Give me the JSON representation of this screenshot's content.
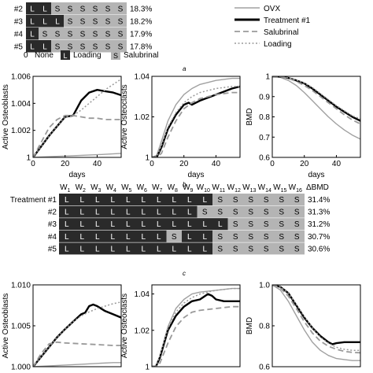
{
  "top_grid": {
    "rows": [
      {
        "label": "#2",
        "cells": [
          "L",
          "L",
          "S",
          "S",
          "S",
          "S",
          "S",
          "S"
        ],
        "pct": "18.3%"
      },
      {
        "label": "#3",
        "cells": [
          "L",
          "L",
          "L",
          "S",
          "S",
          "S",
          "S",
          "S"
        ],
        "pct": "18.2%"
      },
      {
        "label": "#4",
        "cells": [
          "L",
          "S",
          "S",
          "S",
          "S",
          "S",
          "S",
          "S"
        ],
        "pct": "17.9%"
      },
      {
        "label": "#5",
        "cells": [
          "L",
          "L",
          "S",
          "S",
          "S",
          "S",
          "S",
          "S"
        ],
        "pct": "17.8%"
      }
    ],
    "key": {
      "none_symbol": "0",
      "none": "None",
      "loading_symbol": "L",
      "loading": "Loading",
      "salubrinal_symbol": "S",
      "salubrinal": "Salubrinal"
    },
    "caption": "a"
  },
  "legend": {
    "items": [
      {
        "name": "OVX",
        "color": "#a0a0a0",
        "style": "solid"
      },
      {
        "name": "Treatment #1",
        "color": "#000000",
        "style": "solid-thick"
      },
      {
        "name": "Salubrinal",
        "color": "#999999",
        "style": "dashed"
      },
      {
        "name": "Loading",
        "color": "#999999",
        "style": "dotted"
      }
    ]
  },
  "row_b_caption": "b",
  "row_c_caption": "c",
  "mid_grid": {
    "week_prefix": "W",
    "weeks": [
      "1",
      "2",
      "3",
      "4",
      "5",
      "6",
      "7",
      "8",
      "9",
      "10",
      "11",
      "12",
      "13",
      "14",
      "15",
      "16"
    ],
    "delta_label": "ΔBMD",
    "rows": [
      {
        "label": "Treatment #1",
        "cells": [
          "L",
          "L",
          "L",
          "L",
          "L",
          "L",
          "L",
          "L",
          "L",
          "L",
          "S",
          "S",
          "S",
          "S",
          "S",
          "S"
        ],
        "pct": "31.4%"
      },
      {
        "label": "#2",
        "cells": [
          "L",
          "L",
          "L",
          "L",
          "L",
          "L",
          "L",
          "L",
          "L",
          "S",
          "S",
          "S",
          "S",
          "S",
          "S",
          "S"
        ],
        "pct": "31.3%"
      },
      {
        "label": "#3",
        "cells": [
          "L",
          "L",
          "L",
          "L",
          "L",
          "L",
          "L",
          "L",
          "L",
          "L",
          "L",
          "S",
          "S",
          "S",
          "S",
          "S"
        ],
        "pct": "31.2%"
      },
      {
        "label": "#4",
        "cells": [
          "L",
          "L",
          "L",
          "L",
          "L",
          "L",
          "L",
          "S",
          "L",
          "L",
          "S",
          "S",
          "S",
          "S",
          "S",
          "S"
        ],
        "pct": "30.7%"
      },
      {
        "label": "#5",
        "cells": [
          "L",
          "L",
          "L",
          "L",
          "L",
          "L",
          "L",
          "L",
          "L",
          "L",
          "S",
          "S",
          "S",
          "S",
          "S",
          "S"
        ],
        "pct": "30.6%"
      }
    ]
  },
  "colors": {
    "loading": "#2a2a2a",
    "salubrinal": "#b4b4b4"
  },
  "chart_data": [
    {
      "type": "line",
      "ylabel": "Active Osteoblasts",
      "xlabel": "days",
      "xlim": [
        0,
        55
      ],
      "ylim": [
        1.0,
        1.006
      ],
      "yticks": [
        "1",
        "1.002",
        "1.004",
        "1.006"
      ],
      "xticks": [
        "0",
        "20",
        "40"
      ],
      "series": [
        {
          "name": "OVX",
          "x": [
            0,
            10,
            20,
            30,
            40,
            55
          ],
          "y": [
            1.0,
            1.00005,
            1.0001,
            1.00015,
            1.0002,
            1.0003
          ]
        },
        {
          "name": "Treatment #1",
          "x": [
            0,
            5,
            10,
            15,
            20,
            25,
            30,
            35,
            40,
            45,
            50,
            55
          ],
          "y": [
            1.0,
            1.0008,
            1.0016,
            1.0023,
            1.003,
            1.0031,
            1.0042,
            1.0048,
            1.005,
            1.0049,
            1.0048,
            1.0046
          ]
        },
        {
          "name": "Salubrinal",
          "x": [
            0,
            5,
            10,
            15,
            20,
            25,
            30,
            35,
            40,
            45,
            50,
            55
          ],
          "y": [
            1.0,
            1.0011,
            1.0022,
            1.0028,
            1.0031,
            1.0031,
            1.003,
            1.0029,
            1.0029,
            1.0028,
            1.0028,
            1.0028
          ]
        },
        {
          "name": "Loading",
          "x": [
            0,
            5,
            10,
            15,
            20,
            25,
            30,
            35,
            40,
            45,
            50,
            55
          ],
          "y": [
            1.0,
            1.0008,
            1.0016,
            1.0023,
            1.003,
            1.0031,
            1.0035,
            1.004,
            1.0045,
            1.005,
            1.0054,
            1.0058
          ]
        }
      ]
    },
    {
      "type": "line",
      "ylabel": "Active Osteoclasts",
      "xlabel": "days",
      "xlim": [
        0,
        55
      ],
      "ylim": [
        1.0,
        1.04
      ],
      "yticks": [
        "1",
        "1.02",
        "1.04"
      ],
      "xticks": [
        "0",
        "20",
        "40"
      ],
      "series": [
        {
          "name": "OVX",
          "x": [
            0,
            3,
            6,
            10,
            15,
            20,
            25,
            30,
            40,
            50,
            55
          ],
          "y": [
            1.0,
            1.001,
            1.008,
            1.018,
            1.026,
            1.031,
            1.034,
            1.036,
            1.038,
            1.039,
            1.039
          ]
        },
        {
          "name": "Treatment #1",
          "x": [
            0,
            3,
            6,
            10,
            15,
            20,
            23,
            25,
            30,
            40,
            50,
            55
          ],
          "y": [
            1.0,
            1.0,
            1.005,
            1.014,
            1.021,
            1.026,
            1.027,
            1.026,
            1.028,
            1.031,
            1.034,
            1.035
          ]
        },
        {
          "name": "Salubrinal",
          "x": [
            0,
            3,
            6,
            10,
            15,
            20,
            25,
            30,
            40,
            50,
            55
          ],
          "y": [
            1.0,
            1.0,
            1.002,
            1.01,
            1.018,
            1.024,
            1.027,
            1.029,
            1.031,
            1.032,
            1.032
          ]
        },
        {
          "name": "Loading",
          "x": [
            0,
            3,
            6,
            10,
            15,
            20,
            25,
            30,
            40,
            50,
            55
          ],
          "y": [
            1.0,
            1.0,
            1.006,
            1.015,
            1.022,
            1.027,
            1.03,
            1.032,
            1.034,
            1.035,
            1.035
          ]
        }
      ]
    },
    {
      "type": "line",
      "ylabel": "BMD",
      "xlabel": "days",
      "xlim": [
        0,
        55
      ],
      "ylim": [
        0.6,
        1.0
      ],
      "yticks": [
        "0.6",
        "0.7",
        "0.8",
        "0.9",
        "1"
      ],
      "xticks": [
        "0",
        "20",
        "40"
      ],
      "series": [
        {
          "name": "OVX",
          "x": [
            0,
            5,
            10,
            15,
            20,
            25,
            30,
            35,
            40,
            45,
            50,
            55
          ],
          "y": [
            1.0,
            0.995,
            0.98,
            0.955,
            0.92,
            0.88,
            0.84,
            0.8,
            0.765,
            0.735,
            0.71,
            0.69
          ]
        },
        {
          "name": "Treatment #1",
          "x": [
            0,
            5,
            10,
            15,
            20,
            25,
            30,
            35,
            40,
            45,
            50,
            55
          ],
          "y": [
            1.0,
            0.999,
            0.992,
            0.98,
            0.965,
            0.94,
            0.91,
            0.88,
            0.85,
            0.825,
            0.8,
            0.78
          ]
        },
        {
          "name": "Salubrinal",
          "x": [
            0,
            5,
            10,
            15,
            20,
            25,
            30,
            35,
            40,
            45,
            50,
            55
          ],
          "y": [
            1.0,
            0.998,
            0.99,
            0.975,
            0.955,
            0.93,
            0.9,
            0.87,
            0.84,
            0.81,
            0.785,
            0.765
          ]
        },
        {
          "name": "Loading",
          "x": [
            0,
            5,
            10,
            15,
            20,
            25,
            30,
            35,
            40,
            45,
            50,
            55
          ],
          "y": [
            1.0,
            0.999,
            0.993,
            0.982,
            0.967,
            0.945,
            0.915,
            0.885,
            0.855,
            0.83,
            0.805,
            0.79
          ]
        }
      ]
    },
    {
      "type": "line",
      "ylabel": "Active Osteoblasts",
      "xlabel": "",
      "xlim": [
        0,
        110
      ],
      "ylim": [
        1.0,
        1.01
      ],
      "yticks": [
        "1.000",
        "1.005",
        "1.010"
      ],
      "xticks": [],
      "series": [
        {
          "name": "OVX",
          "x": [
            0,
            20,
            40,
            60,
            80,
            100,
            110
          ],
          "y": [
            1.0,
            1.0001,
            1.0002,
            1.0003,
            1.0004,
            1.0005,
            1.0005
          ]
        },
        {
          "name": "Treatment #1",
          "x": [
            0,
            10,
            20,
            30,
            40,
            50,
            60,
            65,
            70,
            75,
            80,
            90,
            100,
            110
          ],
          "y": [
            1.0,
            1.0012,
            1.0024,
            1.0036,
            1.0046,
            1.0055,
            1.0064,
            1.0066,
            1.0074,
            1.0076,
            1.0074,
            1.0068,
            1.0064,
            1.006
          ]
        },
        {
          "name": "Salubrinal",
          "x": [
            0,
            10,
            20,
            30,
            40,
            60,
            80,
            100,
            110
          ],
          "y": [
            1.0,
            1.0016,
            1.0028,
            1.003,
            1.0029,
            1.0028,
            1.0027,
            1.0026,
            1.0026
          ]
        },
        {
          "name": "Loading",
          "x": [
            0,
            10,
            20,
            30,
            40,
            50,
            60,
            70,
            80,
            90,
            100,
            110
          ],
          "y": [
            1.0,
            1.0012,
            1.0024,
            1.0036,
            1.0046,
            1.0055,
            1.0062,
            1.0067,
            1.0071,
            1.0074,
            1.0077,
            1.0079
          ]
        }
      ]
    },
    {
      "type": "line",
      "ylabel": "Active Osteoclasts",
      "xlabel": "",
      "xlim": [
        0,
        110
      ],
      "ylim": [
        1.0,
        1.045
      ],
      "yticks": [
        "1",
        "1.02",
        "1.04"
      ],
      "xticks": [],
      "series": [
        {
          "name": "OVX",
          "x": [
            0,
            5,
            10,
            20,
            30,
            40,
            50,
            60,
            80,
            100,
            110
          ],
          "y": [
            1.0,
            1.0,
            1.006,
            1.022,
            1.032,
            1.037,
            1.04,
            1.041,
            1.042,
            1.043,
            1.043
          ]
        },
        {
          "name": "Treatment #1",
          "x": [
            0,
            5,
            10,
            20,
            30,
            40,
            50,
            60,
            70,
            75,
            80,
            90,
            100,
            110
          ],
          "y": [
            1.0,
            1.0,
            1.005,
            1.02,
            1.028,
            1.033,
            1.036,
            1.037,
            1.04,
            1.039,
            1.037,
            1.036,
            1.036,
            1.036
          ]
        },
        {
          "name": "Salubrinal",
          "x": [
            0,
            5,
            10,
            20,
            30,
            40,
            50,
            60,
            80,
            100,
            110
          ],
          "y": [
            1.0,
            1.0,
            1.002,
            1.013,
            1.022,
            1.027,
            1.03,
            1.031,
            1.032,
            1.033,
            1.033
          ]
        },
        {
          "name": "Loading",
          "x": [
            0,
            5,
            10,
            20,
            30,
            40,
            50,
            60,
            70,
            80,
            100,
            110
          ],
          "y": [
            1.0,
            1.0,
            1.006,
            1.021,
            1.03,
            1.035,
            1.038,
            1.04,
            1.041,
            1.042,
            1.043,
            1.043
          ]
        }
      ]
    },
    {
      "type": "line",
      "ylabel": "BMD",
      "xlabel": "",
      "xlim": [
        0,
        110
      ],
      "ylim": [
        0.6,
        1.0
      ],
      "yticks": [
        "0.6",
        "0.8",
        "1.0"
      ],
      "xticks": [],
      "series": [
        {
          "name": "OVX",
          "x": [
            0,
            10,
            20,
            30,
            40,
            50,
            60,
            70,
            80,
            90,
            100,
            110
          ],
          "y": [
            1.0,
            0.975,
            0.92,
            0.85,
            0.78,
            0.72,
            0.68,
            0.655,
            0.64,
            0.635,
            0.63,
            0.63
          ]
        },
        {
          "name": "Treatment #1",
          "x": [
            0,
            10,
            20,
            30,
            40,
            50,
            60,
            70,
            75,
            80,
            90,
            100,
            110
          ],
          "y": [
            1.0,
            0.99,
            0.96,
            0.9,
            0.84,
            0.79,
            0.75,
            0.72,
            0.71,
            0.715,
            0.72,
            0.72,
            0.72
          ]
        },
        {
          "name": "Salubrinal",
          "x": [
            0,
            10,
            20,
            30,
            40,
            50,
            60,
            70,
            80,
            90,
            100,
            110
          ],
          "y": [
            1.0,
            0.985,
            0.945,
            0.885,
            0.82,
            0.765,
            0.725,
            0.7,
            0.685,
            0.675,
            0.67,
            0.668
          ]
        },
        {
          "name": "Loading",
          "x": [
            0,
            10,
            20,
            30,
            40,
            50,
            60,
            70,
            80,
            90,
            100,
            110
          ],
          "y": [
            1.0,
            0.99,
            0.96,
            0.905,
            0.845,
            0.79,
            0.745,
            0.715,
            0.695,
            0.685,
            0.68,
            0.68
          ]
        }
      ]
    }
  ]
}
